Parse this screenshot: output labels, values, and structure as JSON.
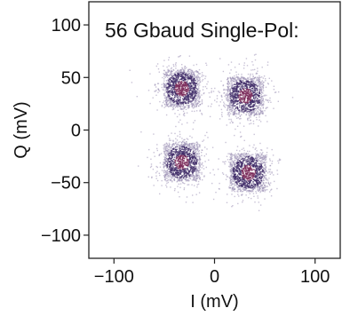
{
  "chart_data": {
    "type": "scatter",
    "title": "56 Gbaud Single-Pol:",
    "xlabel": "I (mV)",
    "ylabel": "Q (mV)",
    "xlim": [
      -125,
      125
    ],
    "ylim": [
      -122,
      122
    ],
    "xticks": [
      -100,
      0,
      100
    ],
    "xtick_labels": [
      "−100",
      "0",
      "100"
    ],
    "yticks": [
      100,
      50,
      0,
      -50,
      -100
    ],
    "ytick_labels": [
      "100",
      "50",
      "0",
      "−50",
      "−100"
    ],
    "grid": false,
    "clusters": [
      {
        "center": [
          -33,
          40
        ],
        "spread": [
          13,
          13
        ],
        "points": 1300
      },
      {
        "center": [
          30,
          33
        ],
        "spread": [
          13,
          13
        ],
        "points": 1300
      },
      {
        "center": [
          -33,
          -30
        ],
        "spread": [
          13,
          13
        ],
        "points": 1300
      },
      {
        "center": [
          33,
          -40
        ],
        "spread": [
          13,
          13
        ],
        "points": 1300
      }
    ],
    "colors": {
      "outer": "#9a8fb4",
      "mid": "#3d2a66",
      "core": "#7a2a5a"
    }
  }
}
